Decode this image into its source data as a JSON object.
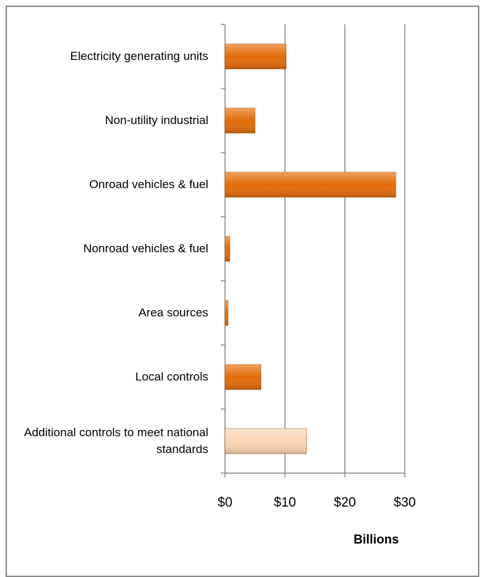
{
  "chart_data": {
    "type": "bar",
    "orientation": "horizontal",
    "categories": [
      "Electricity generating units",
      "Non-utility industrial",
      "Onroad vehicles & fuel",
      "Nonroad vehicles & fuel",
      "Area sources",
      "Local controls",
      "Additional controls to meet national standards"
    ],
    "values": [
      10.2,
      5.0,
      28.5,
      0.8,
      0.5,
      6.0,
      13.6
    ],
    "colors": [
      "#e46c0a",
      "#e46c0a",
      "#e46c0a",
      "#e46c0a",
      "#e46c0a",
      "#e46c0a",
      "#fbd5b5"
    ],
    "xlabel": "Billions",
    "xlim": [
      0,
      30
    ],
    "xticks": [
      {
        "value": 0,
        "label": "$0"
      },
      {
        "value": 10,
        "label": "$10"
      },
      {
        "value": 20,
        "label": "$20"
      },
      {
        "value": 30,
        "label": "$30"
      }
    ],
    "grid": true
  }
}
